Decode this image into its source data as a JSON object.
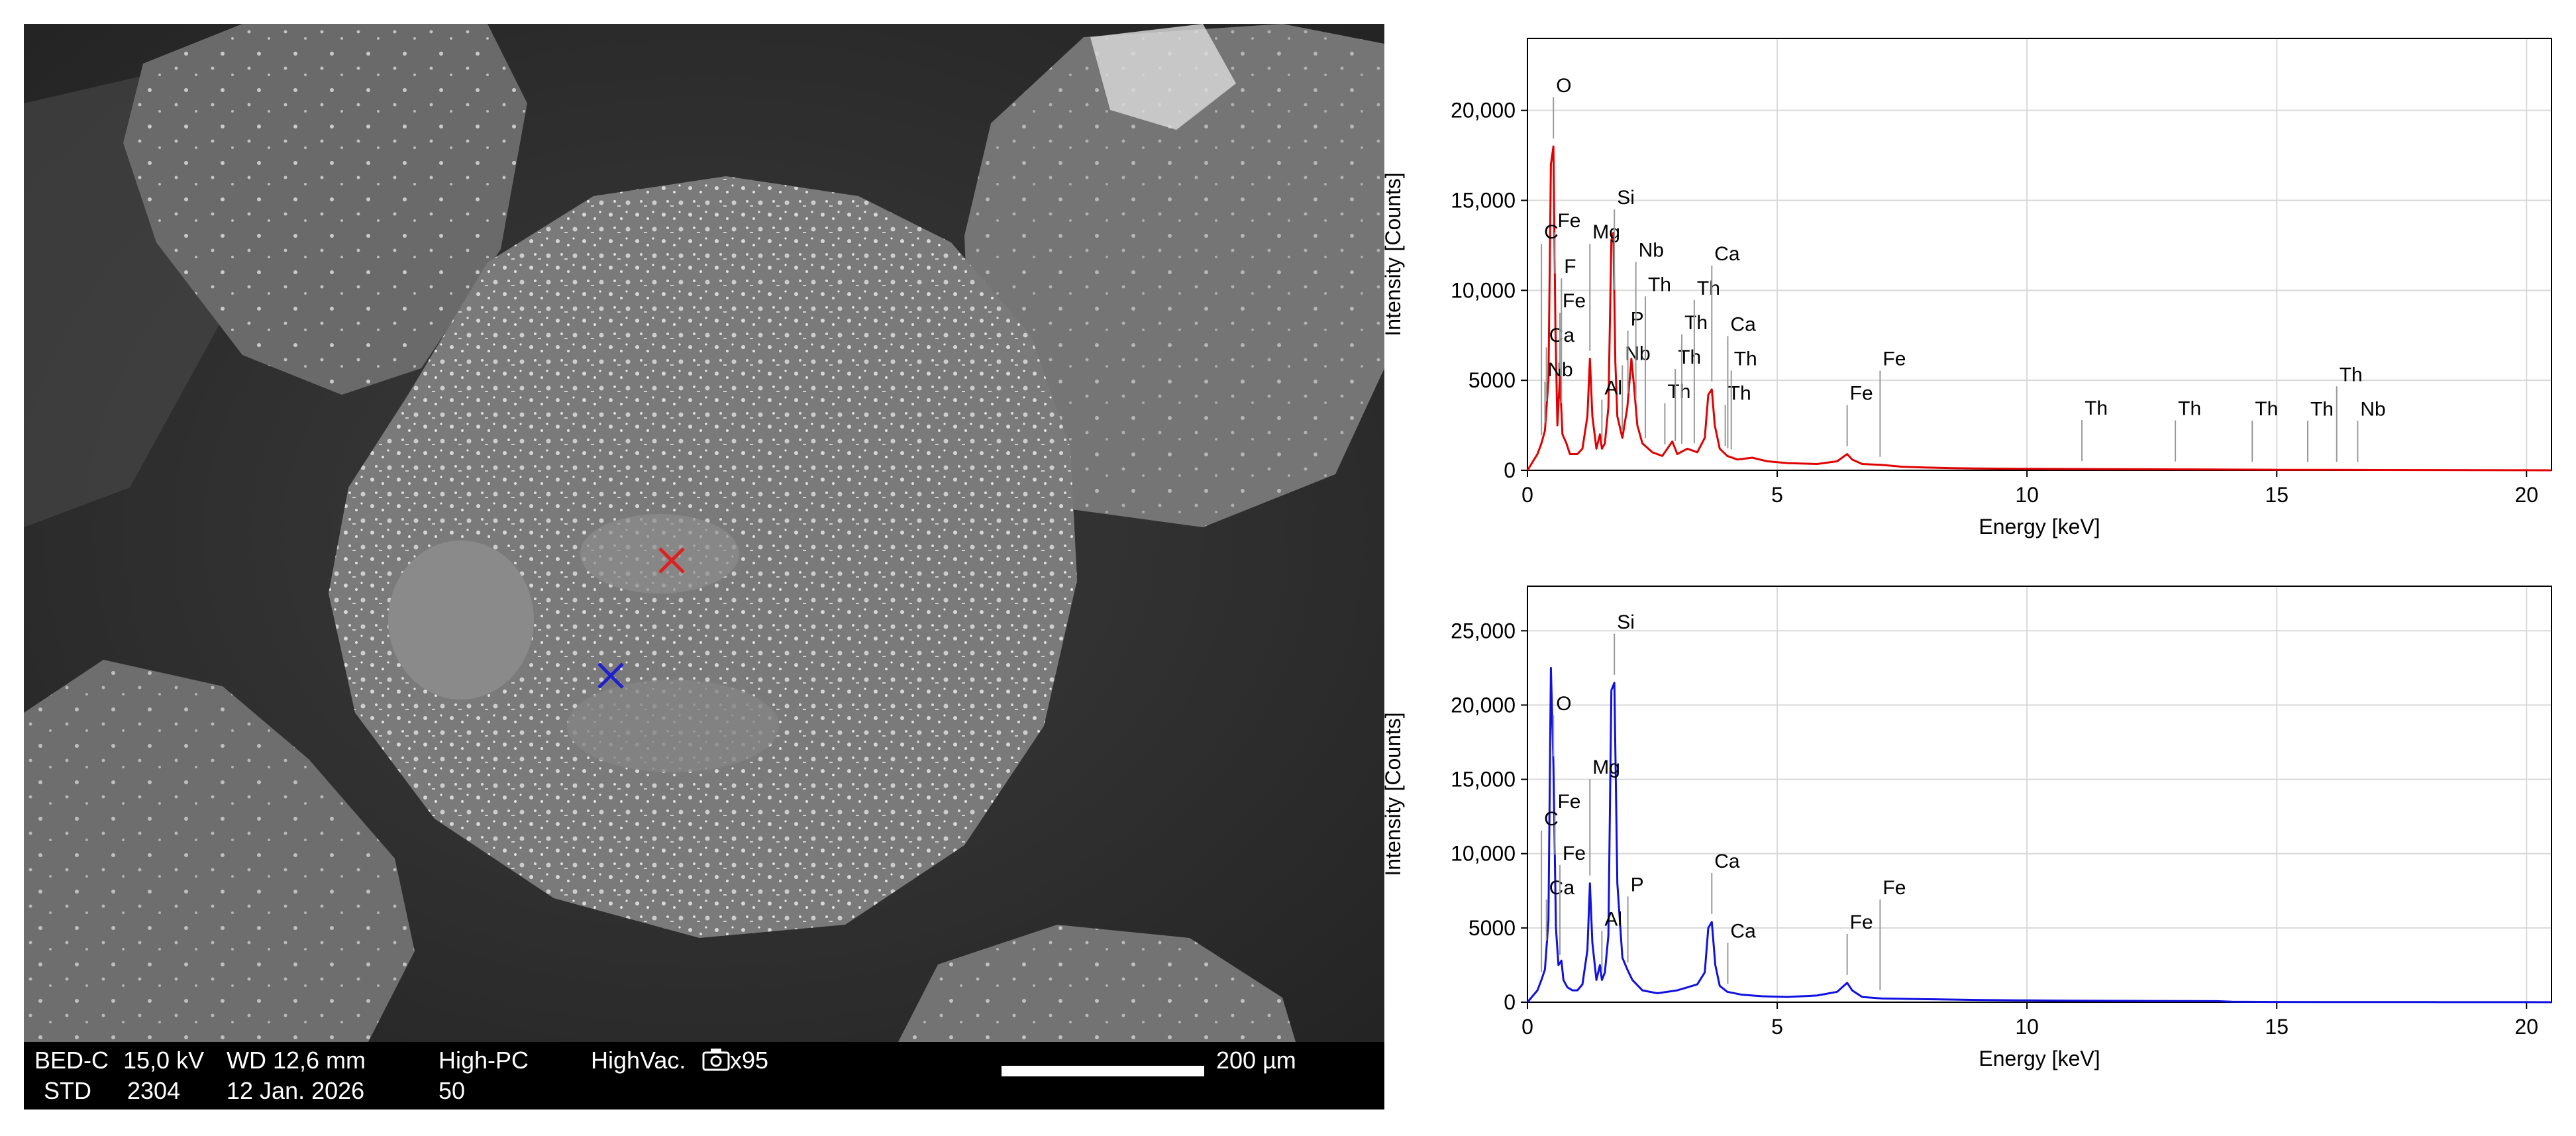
{
  "sem": {
    "info_bar": {
      "detector": "BED-C",
      "voltage": "15,0 kV",
      "wd": "WD 12,6 mm",
      "mode": "High-PC",
      "vacuum": "HighVac.",
      "magnification": "x95",
      "scale_label": "200 µm",
      "std": "STD",
      "id": "2304",
      "date": "12 Jan. 2026",
      "spot": "50"
    },
    "markers": [
      {
        "name": "red-marker",
        "color": "#e02020"
      },
      {
        "name": "blue-marker",
        "color": "#2020d0"
      }
    ],
    "icons": [
      "camera-icon"
    ]
  },
  "chart_data": [
    {
      "type": "line",
      "xlabel": "Energy [keV]",
      "ylabel": "Intensity [Counts]",
      "xlim": [
        0,
        20.5
      ],
      "ylim": [
        0,
        24000
      ],
      "xticks": [
        0,
        5,
        10,
        15,
        20
      ],
      "yticks": [
        0,
        5000,
        10000,
        15000,
        20000
      ],
      "ytick_labels": [
        "0",
        "5000",
        "10,000",
        "15,000",
        "20,000"
      ],
      "grid": true,
      "series": [
        {
          "color": "#e00000",
          "x": [
            0,
            0.2,
            0.28,
            0.35,
            0.42,
            0.47,
            0.52,
            0.56,
            0.6,
            0.65,
            0.7,
            0.78,
            0.85,
            1.0,
            1.1,
            1.2,
            1.25,
            1.3,
            1.38,
            1.45,
            1.49,
            1.55,
            1.62,
            1.68,
            1.72,
            1.76,
            1.8,
            1.9,
            2.0,
            2.08,
            2.13,
            2.2,
            2.3,
            2.5,
            2.7,
            2.9,
            3.0,
            3.2,
            3.4,
            3.55,
            3.62,
            3.69,
            3.75,
            3.85,
            4.0,
            4.2,
            4.5,
            4.8,
            5.2,
            5.8,
            6.2,
            6.4,
            6.5,
            6.7,
            7.1,
            7.5,
            8.0,
            8.5,
            9.0,
            10,
            11,
            12,
            13,
            14,
            15,
            16,
            17,
            18,
            19,
            20,
            20.5
          ],
          "values": [
            0,
            900,
            1500,
            2200,
            5000,
            17000,
            18000,
            8000,
            2500,
            5200,
            2000,
            1500,
            900,
            900,
            1200,
            3000,
            6200,
            3000,
            1200,
            2000,
            1200,
            1500,
            3500,
            12800,
            13200,
            6000,
            3000,
            1800,
            3500,
            6200,
            4800,
            2500,
            1500,
            1000,
            800,
            1600,
            900,
            1200,
            1000,
            1800,
            4200,
            4500,
            2500,
            1200,
            800,
            600,
            700,
            500,
            400,
            350,
            500,
            900,
            600,
            350,
            300,
            200,
            150,
            120,
            100,
            80,
            70,
            60,
            50,
            40,
            30,
            25,
            20,
            15,
            10,
            5,
            0
          ]
        }
      ],
      "annotations": [
        {
          "label": "O",
          "x": 0.52
        },
        {
          "label": "Nb",
          "x": 0.35
        },
        {
          "label": "Fe",
          "x": 0.55
        },
        {
          "label": "Ca",
          "x": 0.38
        },
        {
          "label": "Fe",
          "x": 0.65
        },
        {
          "label": "F",
          "x": 0.68
        },
        {
          "label": "C",
          "x": 0.28
        },
        {
          "label": "Mg",
          "x": 1.25
        },
        {
          "label": "Al",
          "x": 1.49
        },
        {
          "label": "Nb",
          "x": 1.9
        },
        {
          "label": "Si",
          "x": 1.74
        },
        {
          "label": "P",
          "x": 2.01
        },
        {
          "label": "Th",
          "x": 2.36
        },
        {
          "label": "Nb",
          "x": 2.17
        },
        {
          "label": "Th",
          "x": 2.75
        },
        {
          "label": "Th",
          "x": 2.96
        },
        {
          "label": "Th",
          "x": 3.09
        },
        {
          "label": "Th",
          "x": 3.34
        },
        {
          "label": "Ca",
          "x": 3.69
        },
        {
          "label": "Th",
          "x": 3.96
        },
        {
          "label": "Th",
          "x": 4.08
        },
        {
          "label": "Ca",
          "x": 4.01
        },
        {
          "label": "Fe",
          "x": 6.4
        },
        {
          "label": "Fe",
          "x": 7.06
        },
        {
          "label": "Th",
          "x": 11.1
        },
        {
          "label": "Th",
          "x": 12.97
        },
        {
          "label": "Th",
          "x": 14.51
        },
        {
          "label": "Th",
          "x": 15.62
        },
        {
          "label": "Th",
          "x": 16.2
        },
        {
          "label": "Nb",
          "x": 16.62
        }
      ]
    },
    {
      "type": "line",
      "xlabel": "Energy [keV]",
      "ylabel": "Intensity [Counts]",
      "xlim": [
        0,
        20.5
      ],
      "ylim": [
        0,
        28000
      ],
      "xticks": [
        0,
        5,
        10,
        15,
        20
      ],
      "yticks": [
        0,
        5000,
        10000,
        15000,
        20000,
        25000
      ],
      "ytick_labels": [
        "0",
        "5000",
        "10,000",
        "15,000",
        "20,000",
        "25,000"
      ],
      "grid": true,
      "series": [
        {
          "color": "#1010e0",
          "x": [
            0,
            0.2,
            0.28,
            0.35,
            0.42,
            0.47,
            0.52,
            0.57,
            0.62,
            0.68,
            0.72,
            0.8,
            0.9,
            1.0,
            1.1,
            1.2,
            1.25,
            1.3,
            1.38,
            1.45,
            1.49,
            1.55,
            1.62,
            1.68,
            1.74,
            1.8,
            1.9,
            2.0,
            2.1,
            2.3,
            2.6,
            3.0,
            3.4,
            3.55,
            3.62,
            3.69,
            3.76,
            3.85,
            4.0,
            4.3,
            4.7,
            5.2,
            5.8,
            6.2,
            6.4,
            6.5,
            6.7,
            7.1,
            8.0,
            9.0,
            10,
            11,
            12,
            13,
            13.8,
            14.1,
            15,
            16,
            17,
            18,
            19,
            20,
            20.5
          ],
          "values": [
            0,
            800,
            1500,
            2200,
            5500,
            22500,
            16000,
            5000,
            2500,
            2800,
            1500,
            1000,
            800,
            800,
            1200,
            3500,
            8000,
            4000,
            1500,
            2500,
            1500,
            2000,
            4500,
            21000,
            21500,
            8000,
            3000,
            2200,
            1500,
            800,
            600,
            800,
            1200,
            2000,
            5000,
            5400,
            2500,
            1100,
            700,
            500,
            400,
            350,
            450,
            700,
            1300,
            800,
            350,
            250,
            200,
            150,
            120,
            100,
            90,
            80,
            70,
            30,
            20,
            15,
            10,
            8,
            5,
            3,
            0
          ]
        }
      ],
      "annotations": [
        {
          "label": "O",
          "x": 0.52
        },
        {
          "label": "Fe",
          "x": 0.55
        },
        {
          "label": "Ca",
          "x": 0.38
        },
        {
          "label": "Fe",
          "x": 0.65
        },
        {
          "label": "C",
          "x": 0.28
        },
        {
          "label": "Mg",
          "x": 1.25
        },
        {
          "label": "Al",
          "x": 1.49
        },
        {
          "label": "Si",
          "x": 1.74
        },
        {
          "label": "P",
          "x": 2.01
        },
        {
          "label": "Ca",
          "x": 3.69
        },
        {
          "label": "Ca",
          "x": 4.01
        },
        {
          "label": "Fe",
          "x": 6.4
        },
        {
          "label": "Fe",
          "x": 7.06
        }
      ]
    }
  ]
}
